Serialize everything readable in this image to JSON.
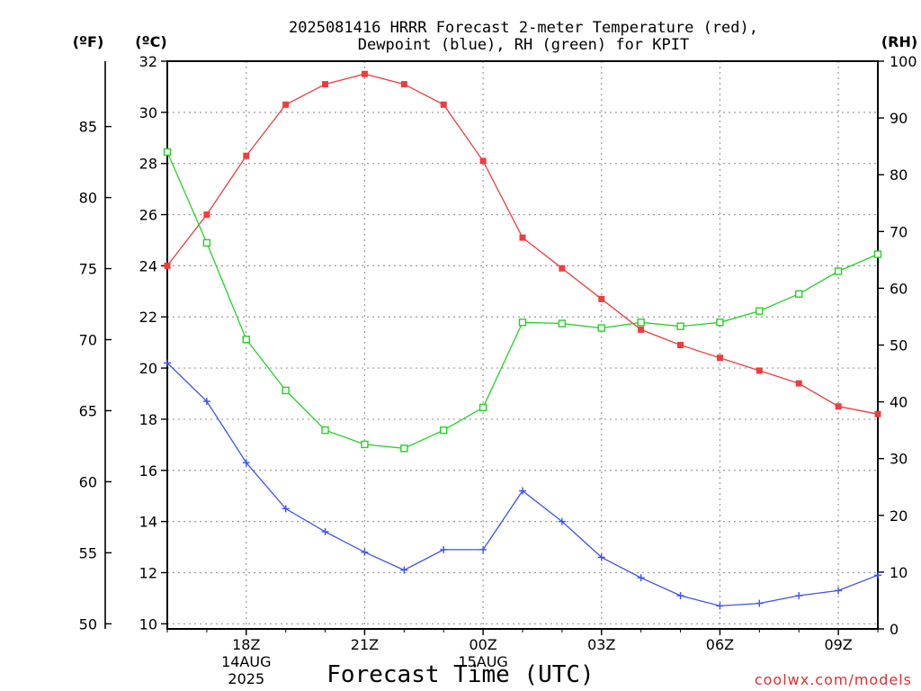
{
  "chart_data": {
    "type": "line",
    "title_lines": [
      "2025081416 HRRR Forecast 2-meter Temperature (red),",
      "Dewpoint (blue), RH (green) for KPIT"
    ],
    "xlabel": "Forecast Time (UTC)",
    "x_hours": [
      0,
      1,
      2,
      3,
      4,
      5,
      6,
      7,
      8,
      9,
      10,
      11,
      12,
      13,
      14,
      15,
      16,
      17,
      18
    ],
    "x_ticks": [
      {
        "hour": 2,
        "label": "18Z",
        "sub": [
          "14AUG",
          "2025"
        ]
      },
      {
        "hour": 5,
        "label": "21Z",
        "sub": []
      },
      {
        "hour": 8,
        "label": "00Z",
        "sub": [
          "15AUG"
        ]
      },
      {
        "hour": 11,
        "label": "03Z",
        "sub": []
      },
      {
        "hour": 14,
        "label": "06Z",
        "sub": []
      },
      {
        "hour": 17,
        "label": "09Z",
        "sub": []
      }
    ],
    "axes": {
      "f": {
        "label": "(ºF)",
        "ticks": [
          50,
          55,
          60,
          65,
          70,
          75,
          80,
          85
        ]
      },
      "c": {
        "label": "(ºC)",
        "ylim": [
          9.8,
          32
        ],
        "ticks": [
          10,
          12,
          14,
          16,
          18,
          20,
          22,
          24,
          26,
          28,
          30,
          32
        ]
      },
      "rh": {
        "label": "(RH)",
        "ylim": [
          0,
          100
        ],
        "ticks": [
          0,
          10,
          20,
          30,
          40,
          50,
          60,
          70,
          80,
          90,
          100
        ]
      }
    },
    "grid": true,
    "series": [
      {
        "name": "Temperature",
        "axis": "c",
        "color": "#f03c3c",
        "marker": "filled-square",
        "values": [
          24.0,
          26.0,
          28.3,
          30.3,
          31.1,
          31.5,
          31.1,
          30.3,
          28.1,
          25.1,
          23.9,
          22.7,
          21.5,
          20.9,
          20.4,
          19.9,
          19.4,
          18.5,
          18.2
        ]
      },
      {
        "name": "Dewpoint",
        "axis": "c",
        "color": "#3c54f0",
        "marker": "plus",
        "values": [
          20.2,
          18.7,
          16.3,
          14.5,
          13.6,
          12.8,
          12.1,
          12.9,
          12.9,
          15.2,
          14.0,
          12.6,
          11.8,
          11.1,
          10.7,
          10.8,
          11.1,
          11.3,
          11.9
        ]
      },
      {
        "name": "RH",
        "axis": "rh",
        "color": "#23d323",
        "marker": "open-square",
        "values": [
          84,
          68,
          51,
          42,
          35,
          32.5,
          31.8,
          35,
          39,
          54,
          53.8,
          53,
          54,
          53.3,
          54,
          56,
          59,
          63,
          66
        ]
      }
    ]
  },
  "credit": "coolwx.com/models"
}
